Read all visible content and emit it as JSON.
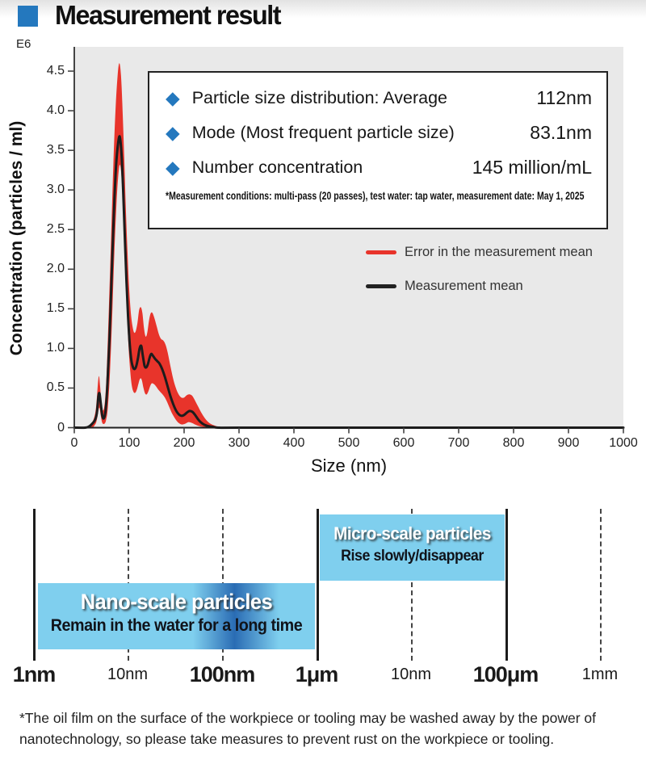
{
  "header": {
    "title": "Measurement result",
    "accent_color": "#2478BE"
  },
  "chart": {
    "multiplier_label": "E6",
    "y_axis_title": "Concentration (particles / ml)",
    "x_axis_title": "Size (nm)",
    "plot_bg_color": "#e9e9e9",
    "info_box": {
      "items": [
        {
          "label": "Particle size distribution: Average",
          "value": "112nm"
        },
        {
          "label": "Mode (Most frequent particle size)",
          "value": "83.1nm"
        },
        {
          "label": "Number concentration",
          "value": "145 million/mL"
        }
      ],
      "note": "*Measurement conditions: multi-pass (20 passes), test water: tap water, measurement date: May 1, 2025"
    },
    "legend": [
      {
        "label": "Error in the measurement mean",
        "color": "#E8342B"
      },
      {
        "label": "Measurement mean",
        "color": "#222222"
      }
    ]
  },
  "chart_data": {
    "type": "area",
    "title": "Particle size distribution",
    "xlabel": "Size (nm)",
    "ylabel": "Concentration (particles / ml)",
    "y_multiplier": "E6",
    "xlim": [
      0,
      1000
    ],
    "ylim": [
      0,
      4.8
    ],
    "x_ticks": [
      0,
      100,
      200,
      300,
      400,
      500,
      600,
      700,
      800,
      900,
      1000
    ],
    "y_ticks": [
      0,
      0.5,
      1.0,
      1.5,
      2.0,
      2.5,
      3.0,
      3.5,
      4.0,
      4.5
    ],
    "y_tick_labels": [
      "0",
      "0.5",
      "1.0",
      "1.5",
      "2.0",
      "2.5",
      "3.0",
      "3.5",
      "4.0",
      "4.5"
    ],
    "grid": false,
    "legend_position": "right-middle",
    "series": [
      {
        "name": "Error in the measurement mean",
        "type": "band",
        "color": "#E8342B",
        "upper": [
          [
            0,
            0
          ],
          [
            22,
            0
          ],
          [
            28,
            0.02
          ],
          [
            33,
            0.07
          ],
          [
            37,
            0.15
          ],
          [
            40,
            0.28
          ],
          [
            43,
            0.55
          ],
          [
            45,
            0.65
          ],
          [
            47,
            0.52
          ],
          [
            50,
            0.28
          ],
          [
            53,
            0.22
          ],
          [
            56,
            0.35
          ],
          [
            59,
            0.7
          ],
          [
            63,
            1.5
          ],
          [
            67,
            2.4
          ],
          [
            71,
            3.3
          ],
          [
            75,
            4.0
          ],
          [
            79,
            4.45
          ],
          [
            82,
            4.6
          ],
          [
            85,
            4.45
          ],
          [
            88,
            4.0
          ],
          [
            91,
            3.4
          ],
          [
            94,
            2.75
          ],
          [
            97,
            2.2
          ],
          [
            100,
            1.75
          ],
          [
            103,
            1.45
          ],
          [
            106,
            1.28
          ],
          [
            109,
            1.2
          ],
          [
            112,
            1.22
          ],
          [
            115,
            1.32
          ],
          [
            118,
            1.48
          ],
          [
            121,
            1.52
          ],
          [
            124,
            1.45
          ],
          [
            127,
            1.25
          ],
          [
            130,
            1.15
          ],
          [
            133,
            1.2
          ],
          [
            136,
            1.35
          ],
          [
            139,
            1.44
          ],
          [
            142,
            1.45
          ],
          [
            146,
            1.38
          ],
          [
            150,
            1.28
          ],
          [
            154,
            1.18
          ],
          [
            158,
            1.12
          ],
          [
            162,
            1.1
          ],
          [
            166,
            1.05
          ],
          [
            170,
            0.95
          ],
          [
            175,
            0.78
          ],
          [
            180,
            0.62
          ],
          [
            185,
            0.5
          ],
          [
            190,
            0.42
          ],
          [
            195,
            0.38
          ],
          [
            200,
            0.38
          ],
          [
            205,
            0.41
          ],
          [
            210,
            0.42
          ],
          [
            215,
            0.4
          ],
          [
            220,
            0.34
          ],
          [
            226,
            0.26
          ],
          [
            232,
            0.18
          ],
          [
            240,
            0.1
          ],
          [
            248,
            0.05
          ],
          [
            258,
            0.02
          ],
          [
            268,
            0
          ]
        ],
        "lower": [
          [
            0,
            0
          ],
          [
            30,
            0
          ],
          [
            38,
            0.04
          ],
          [
            41,
            0.1
          ],
          [
            44,
            0.22
          ],
          [
            46,
            0.25
          ],
          [
            48,
            0.16
          ],
          [
            51,
            0.06
          ],
          [
            55,
            0.05
          ],
          [
            58,
            0.1
          ],
          [
            61,
            0.25
          ],
          [
            65,
            0.7
          ],
          [
            69,
            1.4
          ],
          [
            73,
            2.2
          ],
          [
            77,
            2.85
          ],
          [
            81,
            3.25
          ],
          [
            84,
            3.3
          ],
          [
            87,
            3.05
          ],
          [
            90,
            2.55
          ],
          [
            93,
            2.0
          ],
          [
            96,
            1.45
          ],
          [
            99,
            1.0
          ],
          [
            102,
            0.7
          ],
          [
            105,
            0.52
          ],
          [
            108,
            0.45
          ],
          [
            111,
            0.44
          ],
          [
            114,
            0.48
          ],
          [
            117,
            0.56
          ],
          [
            120,
            0.62
          ],
          [
            123,
            0.6
          ],
          [
            126,
            0.5
          ],
          [
            129,
            0.43
          ],
          [
            132,
            0.42
          ],
          [
            135,
            0.46
          ],
          [
            138,
            0.52
          ],
          [
            141,
            0.56
          ],
          [
            145,
            0.55
          ],
          [
            149,
            0.52
          ],
          [
            153,
            0.48
          ],
          [
            158,
            0.44
          ],
          [
            163,
            0.4
          ],
          [
            168,
            0.34
          ],
          [
            173,
            0.26
          ],
          [
            178,
            0.18
          ],
          [
            184,
            0.11
          ],
          [
            190,
            0.06
          ],
          [
            196,
            0.04
          ],
          [
            202,
            0.05
          ],
          [
            208,
            0.07
          ],
          [
            214,
            0.06
          ],
          [
            220,
            0.04
          ],
          [
            227,
            0.02
          ],
          [
            235,
            0.01
          ],
          [
            245,
            0
          ]
        ]
      },
      {
        "name": "Measurement mean",
        "type": "line",
        "color": "#1c1c1c",
        "points": [
          [
            0,
            0
          ],
          [
            20,
            0
          ],
          [
            28,
            0.02
          ],
          [
            34,
            0.06
          ],
          [
            38,
            0.1
          ],
          [
            41,
            0.18
          ],
          [
            44,
            0.4
          ],
          [
            46,
            0.43
          ],
          [
            48,
            0.32
          ],
          [
            51,
            0.15
          ],
          [
            54,
            0.12
          ],
          [
            57,
            0.22
          ],
          [
            60,
            0.5
          ],
          [
            64,
            1.1
          ],
          [
            68,
            1.9
          ],
          [
            72,
            2.7
          ],
          [
            76,
            3.3
          ],
          [
            80,
            3.6
          ],
          [
            83,
            3.67
          ],
          [
            86,
            3.45
          ],
          [
            89,
            3.0
          ],
          [
            92,
            2.4
          ],
          [
            95,
            1.85
          ],
          [
            98,
            1.4
          ],
          [
            101,
            1.05
          ],
          [
            104,
            0.85
          ],
          [
            107,
            0.76
          ],
          [
            110,
            0.74
          ],
          [
            113,
            0.78
          ],
          [
            116,
            0.88
          ],
          [
            119,
            1.0
          ],
          [
            122,
            1.03
          ],
          [
            125,
            0.9
          ],
          [
            128,
            0.78
          ],
          [
            131,
            0.76
          ],
          [
            134,
            0.8
          ],
          [
            137,
            0.88
          ],
          [
            140,
            0.93
          ],
          [
            143,
            0.91
          ],
          [
            147,
            0.87
          ],
          [
            151,
            0.84
          ],
          [
            155,
            0.81
          ],
          [
            160,
            0.74
          ],
          [
            165,
            0.64
          ],
          [
            170,
            0.52
          ],
          [
            175,
            0.4
          ],
          [
            180,
            0.3
          ],
          [
            185,
            0.22
          ],
          [
            190,
            0.17
          ],
          [
            195,
            0.15
          ],
          [
            200,
            0.16
          ],
          [
            205,
            0.19
          ],
          [
            210,
            0.21
          ],
          [
            215,
            0.2
          ],
          [
            220,
            0.16
          ],
          [
            225,
            0.11
          ],
          [
            230,
            0.07
          ],
          [
            236,
            0.04
          ],
          [
            243,
            0.02
          ],
          [
            252,
            0.01
          ],
          [
            262,
            0
          ],
          [
            300,
            0
          ],
          [
            500,
            0
          ],
          [
            750,
            0
          ],
          [
            1000,
            0
          ]
        ]
      }
    ],
    "annotations": {
      "average_nm": 112,
      "mode_nm": 83.1,
      "number_concentration": "145 million/mL"
    }
  },
  "scale_diagram": {
    "ticks": [
      {
        "label": "1nm",
        "bold": true,
        "line": "solid"
      },
      {
        "label": "10nm",
        "bold": false,
        "line": "dashed"
      },
      {
        "label": "100nm",
        "bold": true,
        "line": "dashed"
      },
      {
        "label": "1μm",
        "bold": true,
        "line": "solid"
      },
      {
        "label": "10nm",
        "bold": false,
        "line": "dashed"
      },
      {
        "label": "100μm",
        "bold": true,
        "line": "solid"
      },
      {
        "label": "1mm",
        "bold": false,
        "line": "dashed"
      }
    ],
    "nano_box": {
      "title": "Nano-scale particles",
      "subtitle": "Remain in the water for a long time"
    },
    "micro_box": {
      "title": "Micro-scale particles",
      "subtitle": "Rise slowly/disappear"
    },
    "box_color": "#7fcfee",
    "band_color": "#2a6cb4"
  },
  "footer_note": "*The oil film on the surface of the workpiece or tooling may be washed away by the power of nanotechnology, so please take measures to prevent rust on the workpiece or tooling."
}
